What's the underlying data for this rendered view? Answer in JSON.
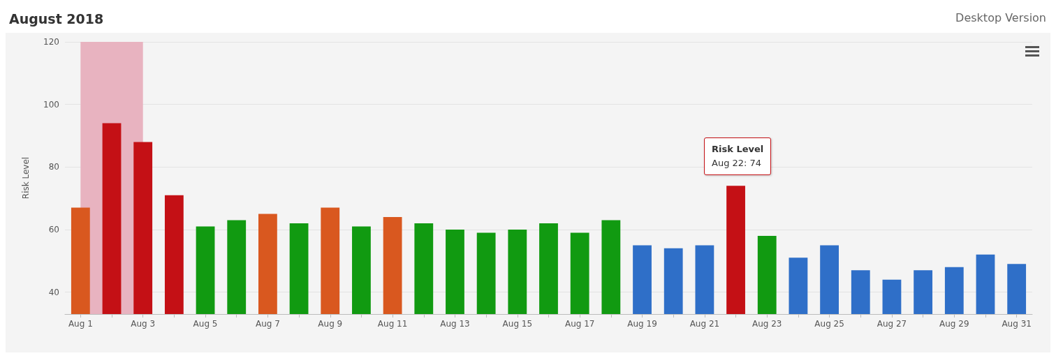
{
  "chart_data": {
    "type": "bar",
    "title": "August 2018",
    "subtitle": "Desktop Version",
    "ylabel": "Risk Level",
    "categories": [
      "Aug 1",
      null,
      "Aug 3",
      null,
      "Aug 5",
      null,
      "Aug 7",
      null,
      "Aug 9",
      null,
      "Aug 11",
      null,
      "Aug 13",
      null,
      "Aug 15",
      null,
      "Aug 17",
      null,
      "Aug 19",
      null,
      "Aug 21",
      null,
      "Aug 23",
      null,
      "Aug 25",
      null,
      "Aug 27",
      null,
      "Aug 29",
      null,
      "Aug 31"
    ],
    "values": [
      67,
      94,
      88,
      71,
      61,
      63,
      65,
      62,
      67,
      61,
      64,
      62,
      60,
      59,
      60,
      62,
      59,
      63,
      55,
      54,
      55,
      74,
      58,
      51,
      55,
      47,
      44,
      47,
      48,
      52,
      49
    ],
    "colors": [
      "#d9581f",
      "#c41015",
      "#c41015",
      "#c41015",
      "#119a11",
      "#119a11",
      "#d9581f",
      "#119a11",
      "#d9581f",
      "#119a11",
      "#d9581f",
      "#119a11",
      "#119a11",
      "#119a11",
      "#119a11",
      "#119a11",
      "#119a11",
      "#119a11",
      "#2f6fc8",
      "#2f6fc8",
      "#2f6fc8",
      "#c41015",
      "#119a11",
      "#2f6fc8",
      "#2f6fc8",
      "#2f6fc8",
      "#2f6fc8",
      "#2f6fc8",
      "#2f6fc8",
      "#2f6fc8",
      "#2f6fc8"
    ],
    "ylim": [
      33,
      120
    ],
    "yticks": [
      40,
      60,
      80,
      100,
      120
    ],
    "grid": "y",
    "bands": [
      {
        "axis": "x",
        "from": "Aug 1",
        "to": "Aug 3",
        "color": "#e8b3c0"
      }
    ],
    "annotations": [
      "Risk Level",
      "Aug 22: 74"
    ]
  }
}
